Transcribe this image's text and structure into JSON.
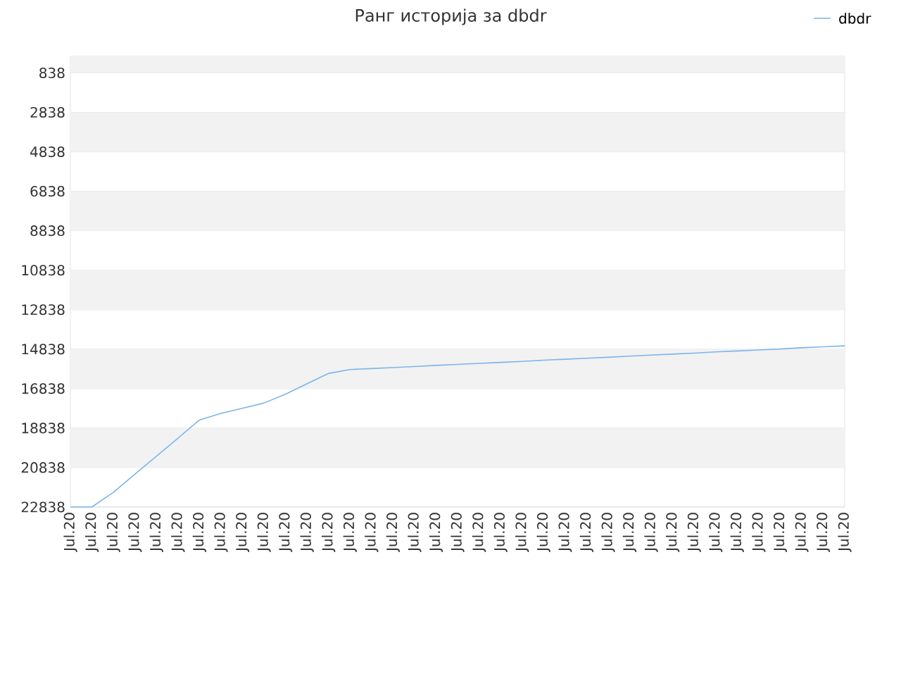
{
  "chart_data": {
    "type": "line",
    "title": "Ранг историја за dbdr",
    "categories": [
      "Jul.20",
      "Jul.20",
      "Jul.20",
      "Jul.20",
      "Jul.20",
      "Jul.20",
      "Jul.20",
      "Jul.20",
      "Jul.20",
      "Jul.20",
      "Jul.20",
      "Jul.20",
      "Jul.20",
      "Jul.20",
      "Jul.20",
      "Jul.20",
      "Jul.20",
      "Jul.20",
      "Jul.20",
      "Jul.20",
      "Jul.20",
      "Jul.20",
      "Jul.20",
      "Jul.20",
      "Jul.20",
      "Jul.20",
      "Jul.20",
      "Jul.20",
      "Jul.20",
      "Jul.20",
      "Jul.20",
      "Jul.20",
      "Jul.20",
      "Jul.20",
      "Jul.20",
      "Jul.20",
      "Jul.20"
    ],
    "series": [
      {
        "name": "dbdr",
        "color": "#7cb5ec",
        "values": [
          22838,
          22838,
          22090,
          21170,
          20260,
          19350,
          18430,
          18090,
          17830,
          17570,
          17120,
          16590,
          16070,
          15870,
          15820,
          15770,
          15720,
          15660,
          15610,
          15560,
          15510,
          15460,
          15400,
          15350,
          15300,
          15250,
          15190,
          15140,
          15090,
          15040,
          14980,
          14930,
          14880,
          14830,
          14770,
          14720,
          14670
        ]
      }
    ],
    "ylim": [
      22838,
      0
    ],
    "yticks": [
      838,
      2838,
      4838,
      6838,
      8838,
      10838,
      12838,
      14838,
      16838,
      18838,
      20838,
      22838
    ],
    "grid": "y",
    "legend": "top right",
    "marker": "none",
    "line_style": "solid"
  }
}
